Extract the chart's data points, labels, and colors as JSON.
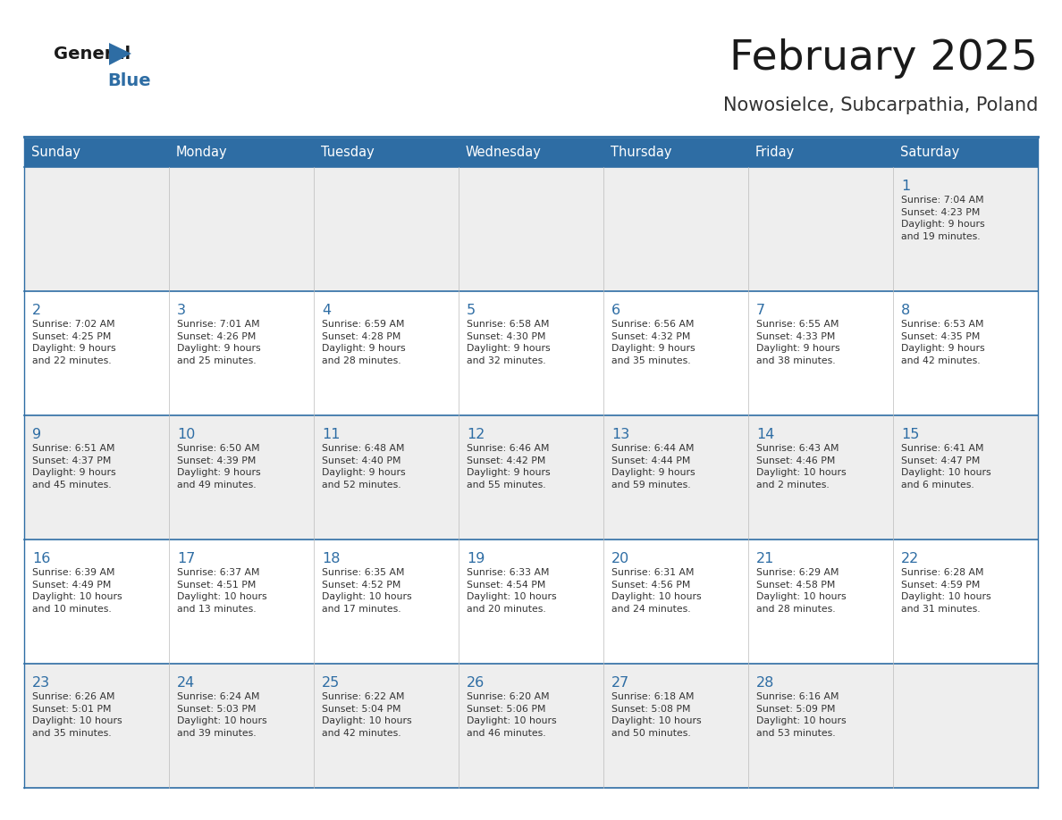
{
  "title": "February 2025",
  "subtitle": "Nowosielce, Subcarpathia, Poland",
  "header_bg": "#2E6DA4",
  "header_text": "#FFFFFF",
  "cell_bg_light": "#EEEEEE",
  "cell_bg_white": "#FFFFFF",
  "day_number_color": "#2E6DA4",
  "text_color": "#333333",
  "line_color": "#2E6DA4",
  "days_of_week": [
    "Sunday",
    "Monday",
    "Tuesday",
    "Wednesday",
    "Thursday",
    "Friday",
    "Saturday"
  ],
  "weeks": [
    [
      {
        "day": null,
        "info": null
      },
      {
        "day": null,
        "info": null
      },
      {
        "day": null,
        "info": null
      },
      {
        "day": null,
        "info": null
      },
      {
        "day": null,
        "info": null
      },
      {
        "day": null,
        "info": null
      },
      {
        "day": 1,
        "info": "Sunrise: 7:04 AM\nSunset: 4:23 PM\nDaylight: 9 hours\nand 19 minutes."
      }
    ],
    [
      {
        "day": 2,
        "info": "Sunrise: 7:02 AM\nSunset: 4:25 PM\nDaylight: 9 hours\nand 22 minutes."
      },
      {
        "day": 3,
        "info": "Sunrise: 7:01 AM\nSunset: 4:26 PM\nDaylight: 9 hours\nand 25 minutes."
      },
      {
        "day": 4,
        "info": "Sunrise: 6:59 AM\nSunset: 4:28 PM\nDaylight: 9 hours\nand 28 minutes."
      },
      {
        "day": 5,
        "info": "Sunrise: 6:58 AM\nSunset: 4:30 PM\nDaylight: 9 hours\nand 32 minutes."
      },
      {
        "day": 6,
        "info": "Sunrise: 6:56 AM\nSunset: 4:32 PM\nDaylight: 9 hours\nand 35 minutes."
      },
      {
        "day": 7,
        "info": "Sunrise: 6:55 AM\nSunset: 4:33 PM\nDaylight: 9 hours\nand 38 minutes."
      },
      {
        "day": 8,
        "info": "Sunrise: 6:53 AM\nSunset: 4:35 PM\nDaylight: 9 hours\nand 42 minutes."
      }
    ],
    [
      {
        "day": 9,
        "info": "Sunrise: 6:51 AM\nSunset: 4:37 PM\nDaylight: 9 hours\nand 45 minutes."
      },
      {
        "day": 10,
        "info": "Sunrise: 6:50 AM\nSunset: 4:39 PM\nDaylight: 9 hours\nand 49 minutes."
      },
      {
        "day": 11,
        "info": "Sunrise: 6:48 AM\nSunset: 4:40 PM\nDaylight: 9 hours\nand 52 minutes."
      },
      {
        "day": 12,
        "info": "Sunrise: 6:46 AM\nSunset: 4:42 PM\nDaylight: 9 hours\nand 55 minutes."
      },
      {
        "day": 13,
        "info": "Sunrise: 6:44 AM\nSunset: 4:44 PM\nDaylight: 9 hours\nand 59 minutes."
      },
      {
        "day": 14,
        "info": "Sunrise: 6:43 AM\nSunset: 4:46 PM\nDaylight: 10 hours\nand 2 minutes."
      },
      {
        "day": 15,
        "info": "Sunrise: 6:41 AM\nSunset: 4:47 PM\nDaylight: 10 hours\nand 6 minutes."
      }
    ],
    [
      {
        "day": 16,
        "info": "Sunrise: 6:39 AM\nSunset: 4:49 PM\nDaylight: 10 hours\nand 10 minutes."
      },
      {
        "day": 17,
        "info": "Sunrise: 6:37 AM\nSunset: 4:51 PM\nDaylight: 10 hours\nand 13 minutes."
      },
      {
        "day": 18,
        "info": "Sunrise: 6:35 AM\nSunset: 4:52 PM\nDaylight: 10 hours\nand 17 minutes."
      },
      {
        "day": 19,
        "info": "Sunrise: 6:33 AM\nSunset: 4:54 PM\nDaylight: 10 hours\nand 20 minutes."
      },
      {
        "day": 20,
        "info": "Sunrise: 6:31 AM\nSunset: 4:56 PM\nDaylight: 10 hours\nand 24 minutes."
      },
      {
        "day": 21,
        "info": "Sunrise: 6:29 AM\nSunset: 4:58 PM\nDaylight: 10 hours\nand 28 minutes."
      },
      {
        "day": 22,
        "info": "Sunrise: 6:28 AM\nSunset: 4:59 PM\nDaylight: 10 hours\nand 31 minutes."
      }
    ],
    [
      {
        "day": 23,
        "info": "Sunrise: 6:26 AM\nSunset: 5:01 PM\nDaylight: 10 hours\nand 35 minutes."
      },
      {
        "day": 24,
        "info": "Sunrise: 6:24 AM\nSunset: 5:03 PM\nDaylight: 10 hours\nand 39 minutes."
      },
      {
        "day": 25,
        "info": "Sunrise: 6:22 AM\nSunset: 5:04 PM\nDaylight: 10 hours\nand 42 minutes."
      },
      {
        "day": 26,
        "info": "Sunrise: 6:20 AM\nSunset: 5:06 PM\nDaylight: 10 hours\nand 46 minutes."
      },
      {
        "day": 27,
        "info": "Sunrise: 6:18 AM\nSunset: 5:08 PM\nDaylight: 10 hours\nand 50 minutes."
      },
      {
        "day": 28,
        "info": "Sunrise: 6:16 AM\nSunset: 5:09 PM\nDaylight: 10 hours\nand 53 minutes."
      },
      {
        "day": null,
        "info": null
      }
    ]
  ]
}
